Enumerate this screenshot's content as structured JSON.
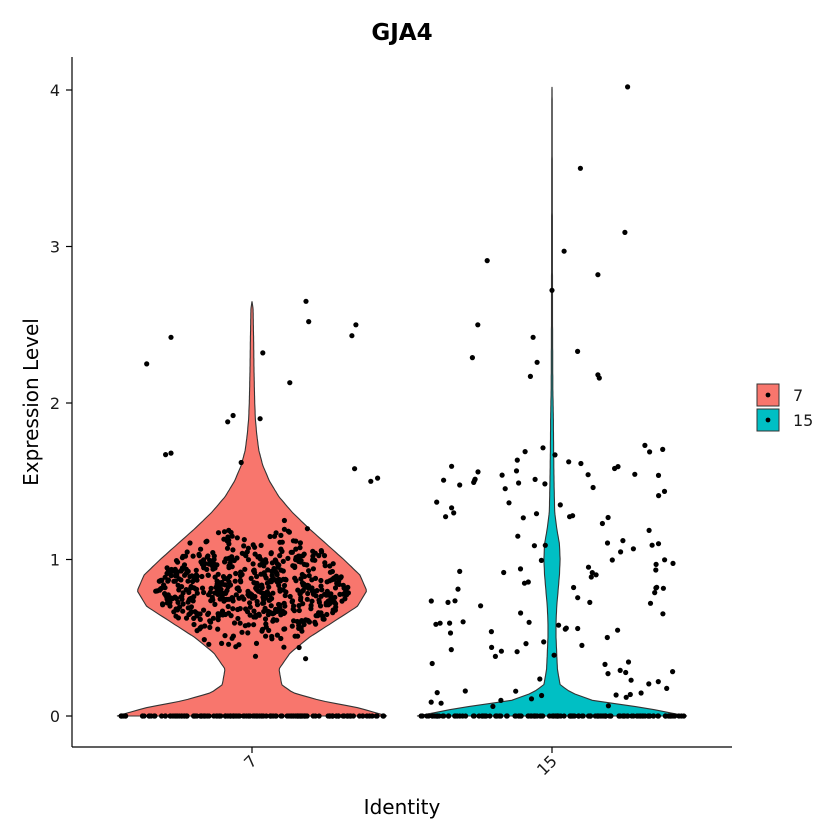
{
  "chart_data": {
    "type": "violin",
    "title": "GJA4",
    "xlabel": "Identity",
    "ylabel": "Expression Level",
    "categories": [
      "7",
      "15"
    ],
    "ylim": [
      -0.2,
      4.2
    ],
    "yticks": [
      0,
      1,
      2,
      3,
      4
    ],
    "grid": false,
    "legend": {
      "placement": "right",
      "entries": [
        {
          "label": "7",
          "color": "#F8766D"
        },
        {
          "label": "15",
          "color": "#00BFC4"
        }
      ]
    },
    "series": [
      {
        "name": "7",
        "color": "#F8766D",
        "zero_count": 150,
        "density": [
          [
            0,
            1.0
          ],
          [
            0.05,
            0.8
          ],
          [
            0.1,
            0.5
          ],
          [
            0.15,
            0.3
          ],
          [
            0.2,
            0.22
          ],
          [
            0.3,
            0.2
          ],
          [
            0.4,
            0.28
          ],
          [
            0.5,
            0.42
          ],
          [
            0.6,
            0.6
          ],
          [
            0.7,
            0.78
          ],
          [
            0.8,
            0.85
          ],
          [
            0.9,
            0.8
          ],
          [
            1.0,
            0.68
          ],
          [
            1.1,
            0.55
          ],
          [
            1.2,
            0.42
          ],
          [
            1.3,
            0.3
          ],
          [
            1.4,
            0.2
          ],
          [
            1.5,
            0.13
          ],
          [
            1.6,
            0.08
          ],
          [
            1.7,
            0.05
          ],
          [
            1.8,
            0.035
          ],
          [
            1.9,
            0.025
          ],
          [
            2.0,
            0.02
          ],
          [
            2.2,
            0.015
          ],
          [
            2.4,
            0.012
          ],
          [
            2.6,
            0.008
          ],
          [
            2.65,
            0
          ]
        ],
        "outliers": [
          [
            2.25,
            -0.78
          ],
          [
            2.42,
            -0.6
          ],
          [
            2.32,
            0.08
          ],
          [
            2.13,
            0.28
          ],
          [
            2.65,
            0.4
          ],
          [
            2.52,
            0.42
          ],
          [
            2.43,
            0.74
          ],
          [
            2.5,
            0.77
          ],
          [
            1.9,
            0.06
          ],
          [
            1.92,
            -0.14
          ],
          [
            1.88,
            -0.18
          ],
          [
            1.68,
            -0.6
          ],
          [
            1.67,
            -0.64
          ],
          [
            1.62,
            -0.08
          ],
          [
            1.58,
            0.76
          ],
          [
            1.52,
            0.93
          ],
          [
            1.5,
            0.88
          ]
        ]
      },
      {
        "name": "15",
        "color": "#00BFC4",
        "zero_count": 140,
        "density": [
          [
            0,
            1.0
          ],
          [
            0.05,
            0.7
          ],
          [
            0.1,
            0.3
          ],
          [
            0.15,
            0.14
          ],
          [
            0.2,
            0.06
          ],
          [
            0.3,
            0.04
          ],
          [
            0.4,
            0.035
          ],
          [
            0.5,
            0.03
          ],
          [
            0.6,
            0.03
          ],
          [
            0.7,
            0.035
          ],
          [
            0.8,
            0.045
          ],
          [
            0.9,
            0.055
          ],
          [
            1.0,
            0.06
          ],
          [
            1.1,
            0.055
          ],
          [
            1.2,
            0.035
          ],
          [
            1.3,
            0.02
          ],
          [
            1.5,
            0.015
          ],
          [
            1.7,
            0.012
          ],
          [
            1.9,
            0.01
          ],
          [
            2.1,
            0.006
          ],
          [
            2.5,
            0.004
          ],
          [
            3.0,
            0.003
          ],
          [
            3.5,
            0.002
          ],
          [
            4.0,
            0.001
          ],
          [
            4.02,
            0
          ]
        ],
        "outliers": [
          [
            4.02,
            0.56
          ],
          [
            3.5,
            0.21
          ],
          [
            3.09,
            0.54
          ],
          [
            2.97,
            0.09
          ],
          [
            2.91,
            -0.48
          ],
          [
            2.82,
            0.34
          ],
          [
            2.72,
            0.0
          ],
          [
            2.5,
            -0.55
          ],
          [
            2.42,
            -0.14
          ],
          [
            2.33,
            0.19
          ],
          [
            2.29,
            -0.59
          ],
          [
            2.26,
            -0.11
          ],
          [
            2.18,
            0.34
          ],
          [
            2.16,
            0.35
          ],
          [
            2.17,
            -0.16
          ]
        ]
      }
    ]
  }
}
